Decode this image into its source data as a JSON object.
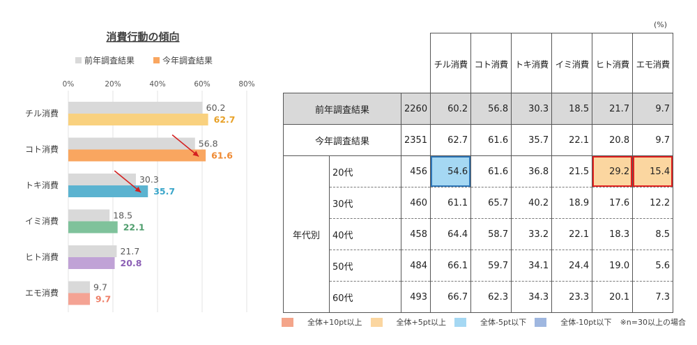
{
  "chart_data": {
    "type": "bar",
    "title": "消費行動の傾向",
    "legend": [
      "前年調査結果",
      "今年調査結果"
    ],
    "legend_placement": "top",
    "categories": [
      "チル消費",
      "コト消費",
      "トキ消費",
      "イミ消費",
      "ヒト消費",
      "エモ消費"
    ],
    "series": [
      {
        "name": "前年調査結果",
        "values": [
          60.2,
          56.8,
          30.3,
          18.5,
          21.7,
          9.7
        ]
      },
      {
        "name": "今年調査結果",
        "values": [
          62.7,
          61.6,
          35.7,
          22.1,
          20.8,
          9.7
        ]
      }
    ],
    "xlim": [
      0,
      80
    ],
    "tick_labels": [
      "0%",
      "20%",
      "40%",
      "60%",
      "80%"
    ],
    "grid": true,
    "colors": {
      "previous": "#d9d9d9",
      "current": [
        "#f9d17f",
        "#f9a660",
        "#5bb3d0",
        "#7fc29b",
        "#c0a2d6",
        "#f4a394"
      ],
      "current_label": [
        "#e8a128",
        "#ef8a33",
        "#39a5c9",
        "#4e9d6c",
        "#8b5fb5",
        "#ee7f68"
      ]
    },
    "arrows_on": [
      "コト消費",
      "トキ消費"
    ]
  },
  "table": {
    "unit": "(%)",
    "headers": [
      "チル消費",
      "コト消費",
      "トキ消費",
      "イミ消費",
      "ヒト消費",
      "エモ消費"
    ],
    "summary_rows": [
      {
        "label": "前年調査結果",
        "n": "2260",
        "values": [
          "60.2",
          "56.8",
          "30.3",
          "18.5",
          "21.7",
          "9.7"
        ]
      },
      {
        "label": "今年調査結果",
        "n": "2351",
        "values": [
          "62.7",
          "61.6",
          "35.7",
          "22.1",
          "20.8",
          "9.7"
        ]
      }
    ],
    "group_label": "年代別",
    "age_rows": [
      {
        "label": "20代",
        "n": "456",
        "values": [
          "54.6",
          "61.6",
          "36.8",
          "21.5",
          "29.2",
          "15.4"
        ],
        "highlights": [
          "blue",
          "",
          "",
          "",
          "orange",
          "orange"
        ]
      },
      {
        "label": "30代",
        "n": "460",
        "values": [
          "61.1",
          "65.7",
          "40.2",
          "18.9",
          "17.6",
          "12.2"
        ],
        "highlights": [
          "",
          "",
          "",
          "",
          "",
          ""
        ]
      },
      {
        "label": "40代",
        "n": "458",
        "values": [
          "64.4",
          "58.7",
          "33.2",
          "22.1",
          "18.3",
          "8.5"
        ],
        "highlights": [
          "",
          "",
          "",
          "",
          "",
          ""
        ]
      },
      {
        "label": "50代",
        "n": "484",
        "values": [
          "66.1",
          "59.7",
          "34.1",
          "24.4",
          "19.0",
          "5.6"
        ],
        "highlights": [
          "",
          "",
          "",
          "",
          "",
          ""
        ]
      },
      {
        "label": "60代",
        "n": "493",
        "values": [
          "66.7",
          "62.3",
          "34.3",
          "23.3",
          "20.1",
          "7.3"
        ],
        "highlights": [
          "",
          "",
          "",
          "",
          "",
          ""
        ]
      }
    ],
    "legend": [
      {
        "label": "全体+10pt以上",
        "color": "#f4a58a"
      },
      {
        "label": "全体+5pt以上",
        "color": "#fbd6a0"
      },
      {
        "label": "全体-5pt以下",
        "color": "#a5d8f3"
      },
      {
        "label": "全体-10pt以下",
        "color": "#9fb7e0"
      }
    ],
    "note": "※n=30以上の場合"
  }
}
